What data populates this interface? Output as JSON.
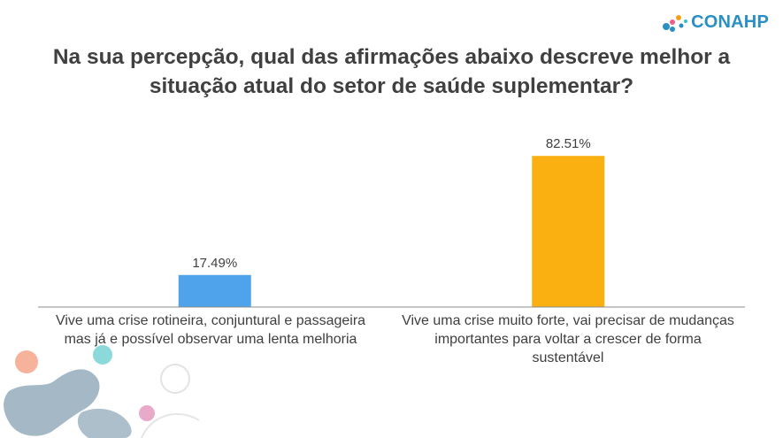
{
  "brand": {
    "name": "CONAHP",
    "color": "#2a8fc4"
  },
  "title_line1": "Na sua percepção, qual das afirmações abaixo descreve melhor a",
  "title_line2": "situação atual do setor de saúde suplementar?",
  "chart_data": {
    "type": "bar",
    "title": "Na sua percepção, qual das afirmações abaixo descreve melhor a situação atual do setor de saúde suplementar?",
    "categories": [
      "Vive uma crise rotineira, conjuntural e passageira mas já e possível observar uma lenta melhoria",
      "Vive uma crise muito forte, vai precisar de mudanças importantes para voltar a crescer de forma sustentável"
    ],
    "values": [
      17.49,
      82.51
    ],
    "data_labels": [
      "17.49%",
      "82.51%"
    ],
    "colors": [
      "#4fa3ea",
      "#fbb012"
    ],
    "unit": "%",
    "ylim": [
      0,
      100
    ],
    "grid": false,
    "legend": "none"
  }
}
